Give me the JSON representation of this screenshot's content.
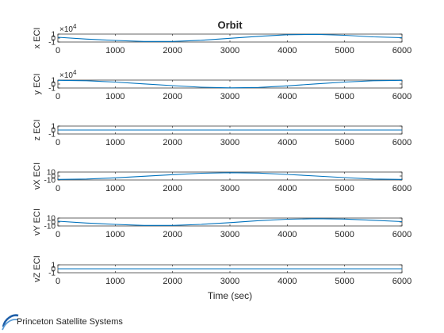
{
  "figure": {
    "title": "Orbit",
    "footer_logo_text": "Princeton Satellite Systems",
    "line_color": "#0072bd",
    "axis_color": "#262626"
  },
  "chart_data": [
    {
      "type": "line",
      "ylabel": "x ECI",
      "exponent_label": "×10",
      "exponent_power": "4",
      "yticks": [
        "1",
        "0",
        "-1"
      ],
      "yscale_ticks": [
        1,
        0,
        -1
      ],
      "ylim": [
        -1,
        1
      ],
      "xlim": [
        0,
        6000
      ],
      "xticks": [
        "0",
        "1000",
        "2000",
        "3000",
        "4000",
        "5000",
        "6000"
      ],
      "series": [
        {
          "x": [
            0,
            500,
            1000,
            1500,
            2000,
            2500,
            3000,
            3500,
            4000,
            4500,
            5000,
            5500,
            6000
          ],
          "values": [
            0.2,
            -0.25,
            -0.6,
            -0.85,
            -0.85,
            -0.55,
            -0.05,
            0.45,
            0.85,
            0.95,
            0.7,
            0.3,
            0.1
          ]
        }
      ]
    },
    {
      "type": "line",
      "ylabel": "y ECI",
      "exponent_label": "×10",
      "exponent_power": "4",
      "yticks": [
        "1",
        "0",
        "-1"
      ],
      "yscale_ticks": [
        1,
        0,
        -1
      ],
      "ylim": [
        -1,
        1
      ],
      "xlim": [
        0,
        6000
      ],
      "xticks": [
        "0",
        "1000",
        "2000",
        "3000",
        "4000",
        "5000",
        "6000"
      ],
      "series": [
        {
          "x": [
            0,
            500,
            1000,
            1500,
            2000,
            2500,
            3000,
            3500,
            4000,
            4500,
            5000,
            5500,
            6000
          ],
          "values": [
            0.95,
            0.85,
            0.5,
            0.05,
            -0.4,
            -0.8,
            -0.97,
            -0.85,
            -0.45,
            0.05,
            0.5,
            0.85,
            0.95
          ]
        }
      ]
    },
    {
      "type": "line",
      "ylabel": "z ECI",
      "yticks": [
        "1",
        "0",
        "-1"
      ],
      "yscale_ticks": [
        1,
        0,
        -1
      ],
      "ylim": [
        -1,
        1
      ],
      "xlim": [
        0,
        6000
      ],
      "xticks": [
        "0",
        "1000",
        "2000",
        "3000",
        "4000",
        "5000",
        "6000"
      ],
      "series": [
        {
          "x": [
            0,
            6000
          ],
          "values": [
            0,
            0
          ]
        }
      ]
    },
    {
      "type": "line",
      "ylabel": "vX ECI",
      "yticks": [
        "10",
        "0",
        "-10"
      ],
      "yscale_ticks": [
        10,
        0,
        -10
      ],
      "ylim": [
        -10,
        10
      ],
      "xlim": [
        0,
        6000
      ],
      "xticks": [
        "0",
        "1000",
        "2000",
        "3000",
        "4000",
        "5000",
        "6000"
      ],
      "series": [
        {
          "x": [
            0,
            500,
            1000,
            1500,
            2000,
            2500,
            3000,
            3500,
            4000,
            4500,
            5000,
            5500,
            6000
          ],
          "values": [
            -8.5,
            -7.5,
            -4.5,
            -0.5,
            3.5,
            7,
            8.5,
            7.5,
            4,
            0,
            -4,
            -7.5,
            -8.5
          ]
        }
      ]
    },
    {
      "type": "line",
      "ylabel": "vY ECI",
      "yticks": [
        "10",
        "0",
        "-10"
      ],
      "yscale_ticks": [
        10,
        0,
        -10
      ],
      "ylim": [
        -10,
        10
      ],
      "xlim": [
        0,
        6000
      ],
      "xticks": [
        "0",
        "1000",
        "2000",
        "3000",
        "4000",
        "5000",
        "6000"
      ],
      "series": [
        {
          "x": [
            0,
            500,
            1000,
            1500,
            2000,
            2500,
            3000,
            3500,
            4000,
            4500,
            5000,
            5500,
            6000
          ],
          "values": [
            2,
            -2.5,
            -6,
            -8.5,
            -8.5,
            -6,
            -1.5,
            3.5,
            7,
            8.5,
            7.5,
            4.5,
            1
          ]
        }
      ]
    },
    {
      "type": "line",
      "ylabel": "vZ ECI",
      "xlabel": "Time (sec)",
      "yticks": [
        "1",
        "0",
        "-1"
      ],
      "yscale_ticks": [
        1,
        0,
        -1
      ],
      "ylim": [
        -1,
        1
      ],
      "xlim": [
        0,
        6000
      ],
      "xticks": [
        "0",
        "1000",
        "2000",
        "3000",
        "4000",
        "5000",
        "6000"
      ],
      "series": [
        {
          "x": [
            0,
            6000
          ],
          "values": [
            0,
            0
          ]
        }
      ]
    }
  ]
}
